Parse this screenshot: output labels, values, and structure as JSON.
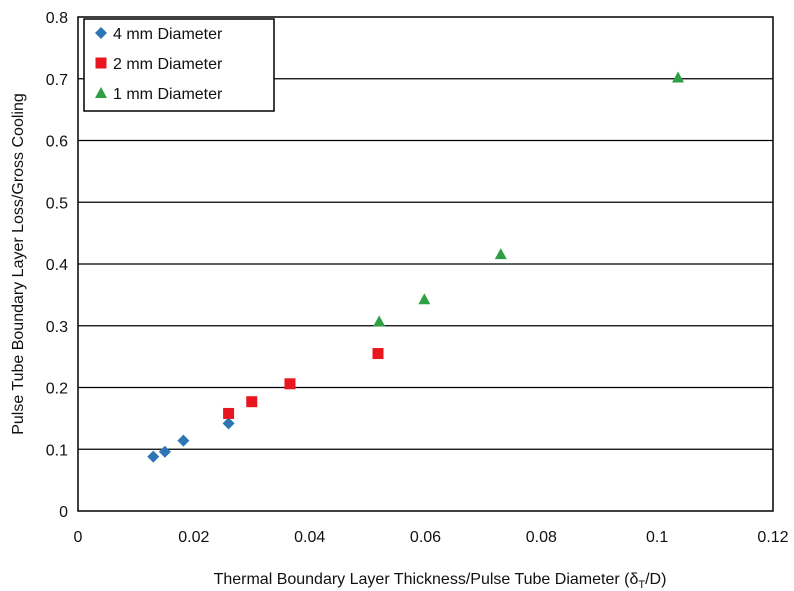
{
  "chart_data": {
    "type": "scatter",
    "xlabel": "Thermal Boundary Layer Thickness/Pulse Tube Diameter (δ",
    "xlabel_sub": "T",
    "xlabel_end": "/D)",
    "ylabel": "Pulse Tube Boundary Layer Loss/Gross Cooling",
    "xlim": [
      0,
      0.12
    ],
    "ylim": [
      0,
      0.8
    ],
    "x_ticks": [
      "0",
      "0.02",
      "0.04",
      "0.06",
      "0.08",
      "0.1",
      "0.12"
    ],
    "y_ticks": [
      "0",
      "0.1",
      "0.2",
      "0.3",
      "0.4",
      "0.5",
      "0.6",
      "0.7",
      "0.8"
    ],
    "grid": "horizontal",
    "legend_position": "top-left",
    "series": [
      {
        "name": "4 mm Diameter",
        "marker": "diamond",
        "color": "#2e75b6",
        "points": [
          [
            0.013,
            0.088
          ],
          [
            0.015,
            0.096
          ],
          [
            0.0182,
            0.114
          ],
          [
            0.026,
            0.142
          ]
        ]
      },
      {
        "name": "2 mm Diameter",
        "marker": "square",
        "color": "#e8171f",
        "points": [
          [
            0.026,
            0.158
          ],
          [
            0.03,
            0.177
          ],
          [
            0.0366,
            0.206
          ],
          [
            0.0518,
            0.255
          ]
        ]
      },
      {
        "name": "1 mm Diameter",
        "marker": "triangle",
        "color": "#2ea043",
        "points": [
          [
            0.052,
            0.307
          ],
          [
            0.0598,
            0.343
          ],
          [
            0.073,
            0.416
          ],
          [
            0.1036,
            0.702
          ]
        ]
      }
    ]
  }
}
